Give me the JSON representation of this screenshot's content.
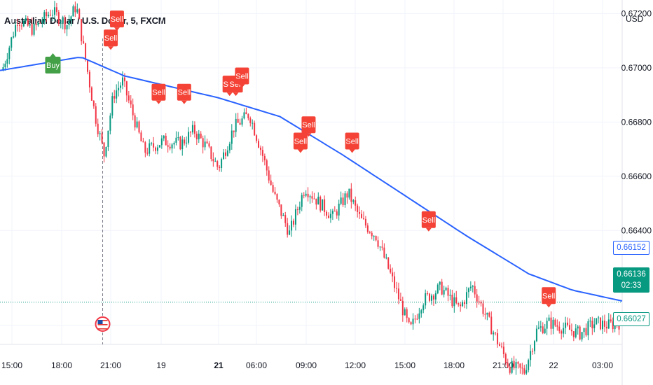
{
  "header": {
    "title": "Australian Dollar / U.S. Dollar, 5, FXCM",
    "currency": "USD"
  },
  "price_badges": {
    "moving_average": "0.66152",
    "current_price": "0.66136",
    "countdown": "02:33",
    "session_low": "0.66027"
  },
  "colors": {
    "up": "#089981",
    "down": "#f23645",
    "moving_average": "#2962ff",
    "buy_signal": "#43a047",
    "sell_signal": "#f44336",
    "grid": "#f0f3fa"
  },
  "chart_data": {
    "type": "candlestick",
    "title": "Australian Dollar / U.S. Dollar, 5, FXCM",
    "y_unit": "USD",
    "ylim": [
      0.6598,
      0.6725
    ],
    "y_ticks": [
      "0.67200",
      "0.67000",
      "0.66800",
      "0.66600",
      "0.66400"
    ],
    "y_tick_values": [
      0.672,
      0.67,
      0.668,
      0.666,
      0.664
    ],
    "x_ticks": [
      "15:00",
      "18:00",
      "21:00",
      "19",
      "21",
      "06:00",
      "09:00",
      "12:00",
      "15:00",
      "18:00",
      "21:00",
      "22",
      "03:00"
    ],
    "grid": true,
    "price_path": [
      [
        0,
        0.6699
      ],
      [
        0.025,
        0.6718
      ],
      [
        0.05,
        0.6714
      ],
      [
        0.08,
        0.6721
      ],
      [
        0.105,
        0.6716
      ],
      [
        0.12,
        0.6723
      ],
      [
        0.135,
        0.6703
      ],
      [
        0.15,
        0.6683
      ],
      [
        0.165,
        0.6668
      ],
      [
        0.18,
        0.669
      ],
      [
        0.195,
        0.6695
      ],
      [
        0.21,
        0.6684
      ],
      [
        0.23,
        0.6669
      ],
      [
        0.26,
        0.6673
      ],
      [
        0.29,
        0.6672
      ],
      [
        0.31,
        0.6677
      ],
      [
        0.33,
        0.6671
      ],
      [
        0.35,
        0.6663
      ],
      [
        0.375,
        0.6678
      ],
      [
        0.4,
        0.6683
      ],
      [
        0.42,
        0.6669
      ],
      [
        0.44,
        0.6653
      ],
      [
        0.465,
        0.6639
      ],
      [
        0.49,
        0.6656
      ],
      [
        0.51,
        0.6651
      ],
      [
        0.535,
        0.6645
      ],
      [
        0.56,
        0.6654
      ],
      [
        0.58,
        0.6644
      ],
      [
        0.605,
        0.6638
      ],
      [
        0.625,
        0.6626
      ],
      [
        0.645,
        0.6613
      ],
      [
        0.66,
        0.6603
      ],
      [
        0.68,
        0.6614
      ],
      [
        0.71,
        0.6619
      ],
      [
        0.74,
        0.6611
      ],
      [
        0.76,
        0.662
      ],
      [
        0.78,
        0.661
      ],
      [
        0.8,
        0.66
      ],
      [
        0.82,
        0.659
      ],
      [
        0.845,
        0.6588
      ],
      [
        0.865,
        0.6603
      ],
      [
        0.885,
        0.6606
      ],
      [
        0.91,
        0.6604
      ],
      [
        0.935,
        0.6602
      ],
      [
        0.96,
        0.6606
      ],
      [
        0.98,
        0.6605
      ],
      [
        1,
        0.6606
      ]
    ],
    "moving_average_path": [
      [
        0,
        0.6699
      ],
      [
        0.13,
        0.6704
      ],
      [
        0.2,
        0.6697
      ],
      [
        0.35,
        0.6689
      ],
      [
        0.45,
        0.6682
      ],
      [
        0.55,
        0.6668
      ],
      [
        0.65,
        0.6653
      ],
      [
        0.75,
        0.6638
      ],
      [
        0.85,
        0.6624
      ],
      [
        0.92,
        0.6618
      ],
      [
        1,
        0.6614
      ]
    ],
    "signals": [
      {
        "label": "Buy",
        "pos": 0.085,
        "value": 0.6701
      },
      {
        "label": "Sell",
        "pos": 0.178,
        "value": 0.6711
      },
      {
        "label": "Sell",
        "pos": 0.188,
        "value": 0.6718
      },
      {
        "label": "Sell",
        "pos": 0.255,
        "value": 0.6691
      },
      {
        "label": "Sell",
        "pos": 0.296,
        "value": 0.6691
      },
      {
        "label": "Sell",
        "pos": 0.369,
        "value": 0.6694
      },
      {
        "label": "Sell",
        "pos": 0.379,
        "value": 0.6694
      },
      {
        "label": "Sell",
        "pos": 0.389,
        "value": 0.6697
      },
      {
        "label": "Sell",
        "pos": 0.483,
        "value": 0.6673
      },
      {
        "label": "Sell",
        "pos": 0.496,
        "value": 0.6679
      },
      {
        "label": "Sell",
        "pos": 0.566,
        "value": 0.6673
      },
      {
        "label": "Sell",
        "pos": 0.689,
        "value": 0.6644
      },
      {
        "label": "Sell",
        "pos": 0.882,
        "value": 0.6616
      }
    ],
    "session_marker": {
      "label": "US market open",
      "pos": 0.165
    }
  }
}
